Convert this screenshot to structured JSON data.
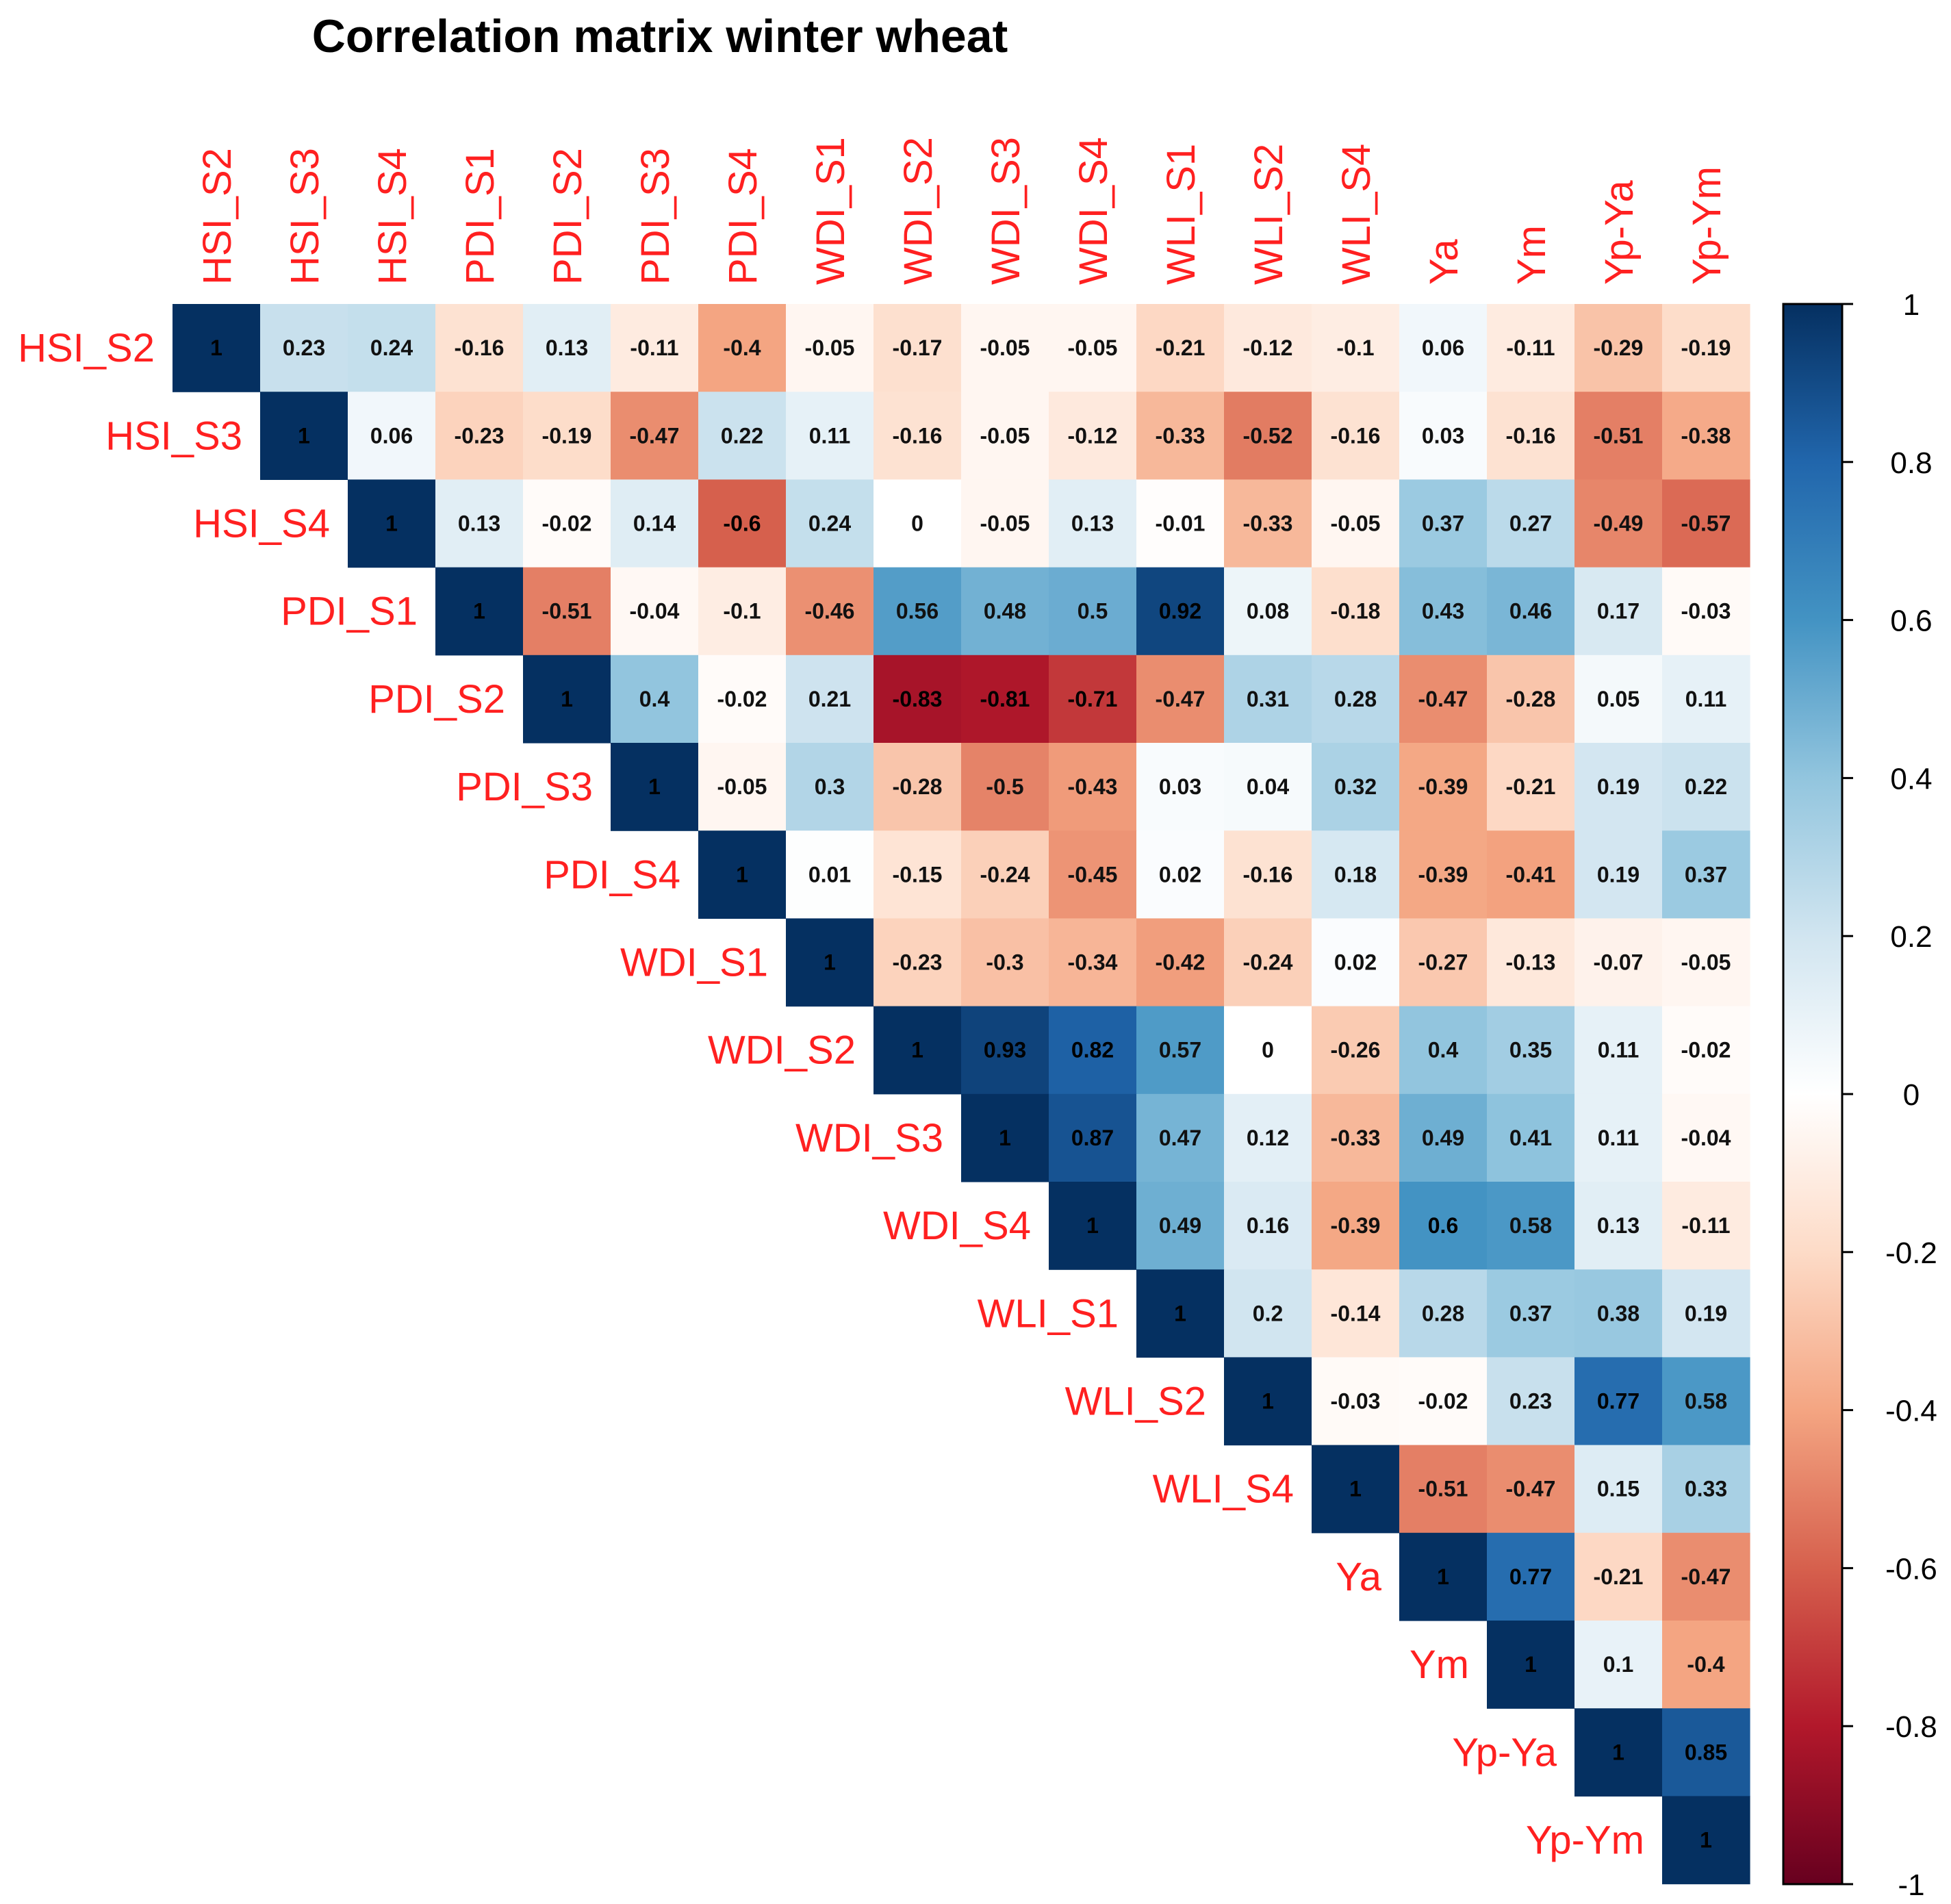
{
  "chart_data": {
    "type": "heatmap",
    "title": "Correlation matrix winter wheat",
    "variables": [
      "HSI_S2",
      "HSI_S3",
      "HSI_S4",
      "PDI_S1",
      "PDI_S2",
      "PDI_S3",
      "PDI_S4",
      "WDI_S1",
      "WDI_S2",
      "WDI_S3",
      "WDI_S4",
      "WLI_S1",
      "WLI_S2",
      "WLI_S4",
      "Ya",
      "Ym",
      "Yp-Ya",
      "Yp-Ym"
    ],
    "upper_triangle_rows": [
      [
        1,
        0.23,
        0.24,
        -0.16,
        0.13,
        -0.11,
        -0.4,
        -0.05,
        -0.17,
        -0.05,
        -0.05,
        -0.21,
        -0.12,
        -0.1,
        0.06,
        -0.11,
        -0.29,
        -0.19
      ],
      [
        1,
        0.06,
        -0.23,
        -0.19,
        -0.47,
        0.22,
        0.11,
        -0.16,
        -0.05,
        -0.12,
        -0.33,
        -0.52,
        -0.16,
        0.03,
        -0.16,
        -0.51,
        -0.38
      ],
      [
        1,
        0.13,
        -0.02,
        0.14,
        -0.6,
        0.24,
        0,
        -0.05,
        0.13,
        -0.01,
        -0.33,
        -0.05,
        0.37,
        0.27,
        -0.49,
        -0.57
      ],
      [
        1,
        -0.51,
        -0.04,
        -0.1,
        -0.46,
        0.56,
        0.48,
        0.5,
        0.92,
        0.08,
        -0.18,
        0.43,
        0.46,
        0.17,
        -0.03
      ],
      [
        1,
        0.4,
        -0.02,
        0.21,
        -0.83,
        -0.81,
        -0.71,
        -0.47,
        0.31,
        0.28,
        -0.47,
        -0.28,
        0.05,
        0.11
      ],
      [
        1,
        -0.05,
        0.3,
        -0.28,
        -0.5,
        -0.43,
        0.03,
        0.04,
        0.32,
        -0.39,
        -0.21,
        0.19,
        0.22
      ],
      [
        1,
        0.01,
        -0.15,
        -0.24,
        -0.45,
        0.02,
        -0.16,
        0.18,
        -0.39,
        -0.41,
        0.19,
        0.37
      ],
      [
        1,
        -0.23,
        -0.3,
        -0.34,
        -0.42,
        -0.24,
        0.02,
        -0.27,
        -0.13,
        -0.07,
        -0.05
      ],
      [
        1,
        0.93,
        0.82,
        0.57,
        0,
        -0.26,
        0.4,
        0.35,
        0.11,
        -0.02
      ],
      [
        1,
        0.87,
        0.47,
        0.12,
        -0.33,
        0.49,
        0.41,
        0.11,
        -0.04
      ],
      [
        1,
        0.49,
        0.16,
        -0.39,
        0.6,
        0.58,
        0.13,
        -0.11
      ],
      [
        1,
        0.2,
        -0.14,
        0.28,
        0.37,
        0.38,
        0.19
      ],
      [
        1,
        -0.03,
        -0.02,
        0.23,
        0.77,
        0.58
      ],
      [
        1,
        -0.51,
        -0.47,
        0.15,
        0.33
      ],
      [
        1,
        0.77,
        -0.21,
        -0.47
      ],
      [
        1,
        0.1,
        -0.4
      ],
      [
        1,
        0.85
      ],
      [
        1
      ]
    ],
    "colorbar": {
      "range": [
        -1,
        1
      ],
      "ticks": [
        1,
        0.8,
        0.6,
        0.4,
        0.2,
        0,
        -0.2,
        -0.4,
        -0.6,
        -0.8,
        -1
      ],
      "colors": [
        "#67001F",
        "#B2182B",
        "#D6604D",
        "#F4A582",
        "#FDDBC7",
        "#FFFFFF",
        "#D1E5F0",
        "#92C5DE",
        "#4393C3",
        "#2166AC",
        "#053061"
      ]
    },
    "label_color": "#FF2020"
  }
}
